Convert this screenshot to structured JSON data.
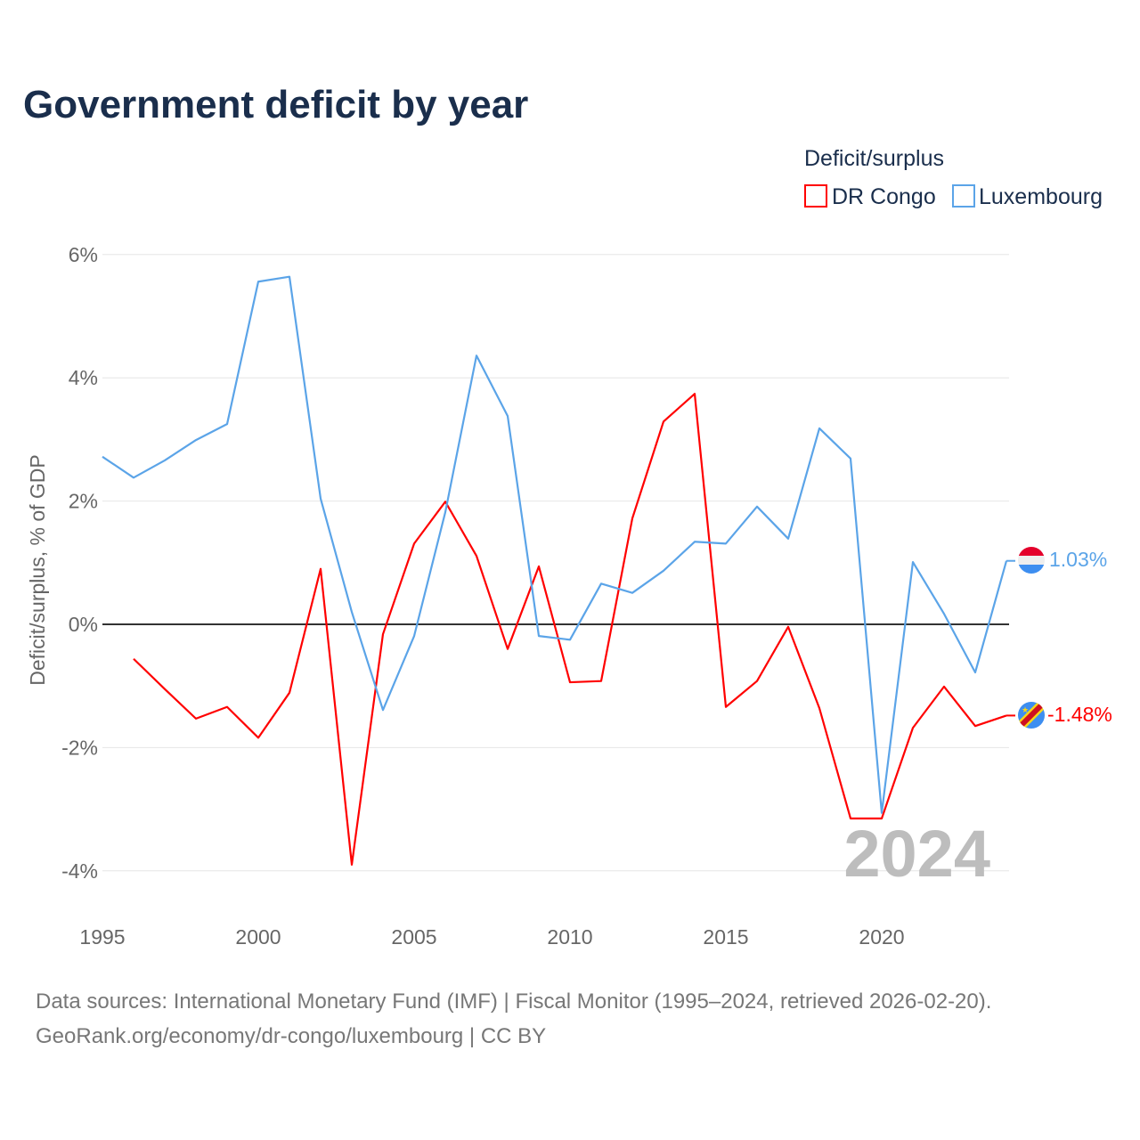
{
  "chart_data": {
    "type": "line",
    "title": "Government deficit by year",
    "legend_title": "Deficit/surplus",
    "legend_position": "top-right",
    "ylabel": "Deficit/surplus, % of GDP",
    "xlabel": "",
    "ylim": [
      -4.5,
      6.5
    ],
    "yticks": [
      6,
      4,
      2,
      0,
      -2,
      -4
    ],
    "ytick_labels": [
      "6%",
      "4%",
      "2%",
      "0%",
      "-2%",
      "-4%"
    ],
    "xticks": [
      1995,
      2000,
      2005,
      2010,
      2015,
      2020
    ],
    "xtick_labels": [
      "1995",
      "2000",
      "2005",
      "2010",
      "2015",
      "2020"
    ],
    "xlim": [
      1995,
      2024
    ],
    "watermark_year": "2024",
    "grid": true,
    "series": [
      {
        "name": "DR Congo",
        "color": "#ff0000",
        "end_label": "-1.48%",
        "x": [
          1996,
          1997,
          1998,
          1999,
          2000,
          2001,
          2002,
          2003,
          2004,
          2005,
          2006,
          2007,
          2008,
          2009,
          2010,
          2011,
          2012,
          2013,
          2014,
          2015,
          2016,
          2017,
          2018,
          2019,
          2020,
          2021,
          2022,
          2023,
          2024
        ],
        "values": [
          -0.56,
          -1.05,
          -1.53,
          -1.34,
          -1.84,
          -1.11,
          0.9,
          -3.9,
          -0.16,
          1.31,
          1.99,
          1.11,
          -0.4,
          0.94,
          -0.94,
          -0.92,
          1.72,
          3.29,
          3.74,
          -1.34,
          -0.92,
          -0.04,
          -1.36,
          -3.15,
          -3.15,
          -1.68,
          -1.01,
          -1.65,
          -1.48
        ]
      },
      {
        "name": "Luxembourg",
        "color": "#5ba4e8",
        "end_label": "1.03%",
        "x": [
          1995,
          1996,
          1997,
          1998,
          1999,
          2000,
          2001,
          2002,
          2003,
          2004,
          2005,
          2006,
          2007,
          2008,
          2009,
          2010,
          2011,
          2012,
          2013,
          2014,
          2015,
          2016,
          2017,
          2018,
          2019,
          2020,
          2021,
          2022,
          2023,
          2024
        ],
        "values": [
          2.72,
          2.38,
          2.66,
          2.99,
          3.25,
          5.56,
          5.64,
          2.04,
          0.2,
          -1.39,
          -0.19,
          1.82,
          4.36,
          3.38,
          -0.19,
          -0.25,
          0.66,
          0.51,
          0.87,
          1.34,
          1.31,
          1.91,
          1.39,
          3.18,
          2.69,
          -3.06,
          1.01,
          0.17,
          -0.78,
          1.03
        ]
      }
    ]
  },
  "footer": {
    "source": "Data sources: International Monetary Fund (IMF) | Fiscal Monitor (1995–2024, retrieved 2026-02-20).",
    "credit": "GeoRank.org/economy/dr-congo/luxembourg | CC BY"
  }
}
